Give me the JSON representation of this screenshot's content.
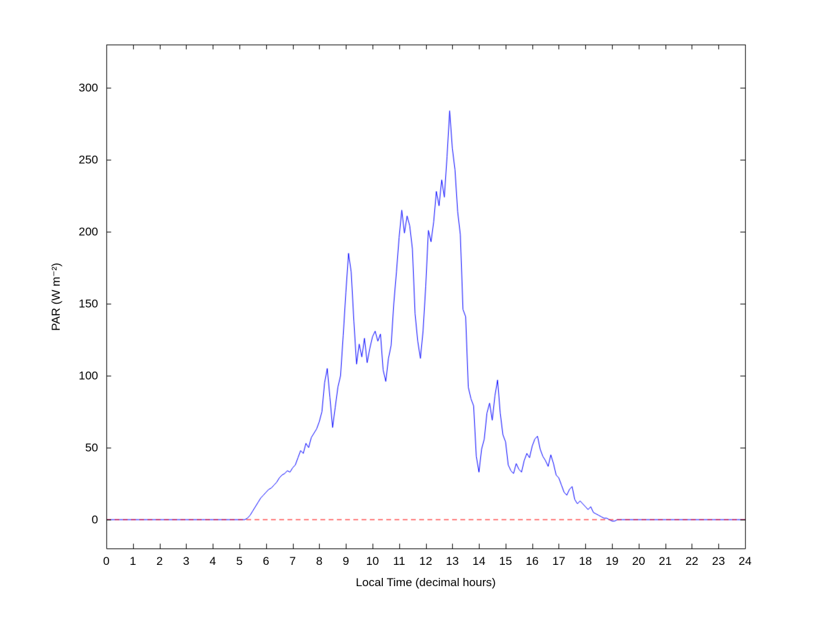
{
  "figure": {
    "background": "#FFFFFF"
  },
  "chart_data": {
    "type": "line",
    "title": "",
    "xlabel": "Local Time (decimal hours)",
    "ylabel": "PAR (W m⁻²)",
    "xlim": [
      0,
      24
    ],
    "ylim": [
      -20,
      330
    ],
    "xticks": [
      0,
      1,
      2,
      3,
      4,
      5,
      6,
      7,
      8,
      9,
      10,
      11,
      12,
      13,
      14,
      15,
      16,
      17,
      18,
      19,
      20,
      21,
      22,
      23,
      24
    ],
    "yticks": [
      0,
      50,
      100,
      150,
      200,
      250,
      300
    ],
    "grid": false,
    "legend": null,
    "axis_color": "#000000",
    "series": [
      {
        "name": "PAR",
        "type": "line",
        "color": "#0000FF",
        "line_style": "solid",
        "x0": 0,
        "dx": 0.1,
        "values": [
          0,
          0,
          0,
          0,
          0,
          0,
          0,
          0,
          0,
          0,
          0,
          0,
          0,
          0,
          0,
          0,
          0,
          0,
          0,
          0,
          0,
          0,
          0,
          0,
          0,
          0,
          0,
          0,
          0,
          0,
          0,
          0,
          0,
          0,
          0,
          0,
          0,
          0,
          0,
          0,
          0,
          0,
          0,
          0,
          0,
          0,
          0,
          0,
          0,
          0,
          0,
          0,
          0,
          1,
          3,
          6,
          9,
          12,
          15,
          17,
          19,
          21,
          22,
          24,
          26,
          29,
          31,
          32,
          34,
          33,
          36,
          38,
          43,
          48,
          46,
          53,
          50,
          57,
          60,
          63,
          68,
          75,
          95,
          105,
          85,
          64,
          78,
          92,
          100,
          128,
          158,
          185,
          172,
          138,
          108,
          122,
          113,
          126,
          109,
          119,
          127,
          131,
          124,
          129,
          104,
          96,
          112,
          121,
          150,
          172,
          196,
          215,
          199,
          211,
          204,
          188,
          143,
          124,
          112,
          131,
          162,
          201,
          193,
          207,
          228,
          218,
          236,
          224,
          252,
          284,
          258,
          243,
          214,
          198,
          146,
          141,
          92,
          84,
          79,
          44,
          33,
          49,
          56,
          74,
          81,
          69,
          86,
          97,
          74,
          59,
          54,
          38,
          34,
          32,
          39,
          35,
          33,
          41,
          46,
          43,
          51,
          56,
          58,
          49,
          44,
          41,
          37,
          45,
          39,
          31,
          29,
          24,
          19,
          17,
          21,
          23,
          14,
          11,
          13,
          11,
          9,
          7,
          9,
          5,
          4,
          3,
          2,
          1,
          1,
          0,
          -1,
          -1,
          0,
          0,
          0,
          0,
          0,
          0,
          0,
          0,
          0,
          0,
          0,
          0,
          0,
          0,
          0,
          0,
          0,
          0,
          0,
          0,
          0,
          0,
          0,
          0,
          0,
          0,
          0,
          0,
          0,
          0,
          0,
          0,
          0,
          0,
          0,
          0,
          0,
          0,
          0,
          0,
          0,
          0,
          0,
          0,
          0,
          0,
          0,
          0,
          0
        ]
      },
      {
        "name": "zero-reference",
        "type": "line",
        "color": "#FF0000",
        "line_style": "dashed",
        "x": [
          0,
          24
        ],
        "values": [
          0,
          0
        ]
      }
    ]
  }
}
